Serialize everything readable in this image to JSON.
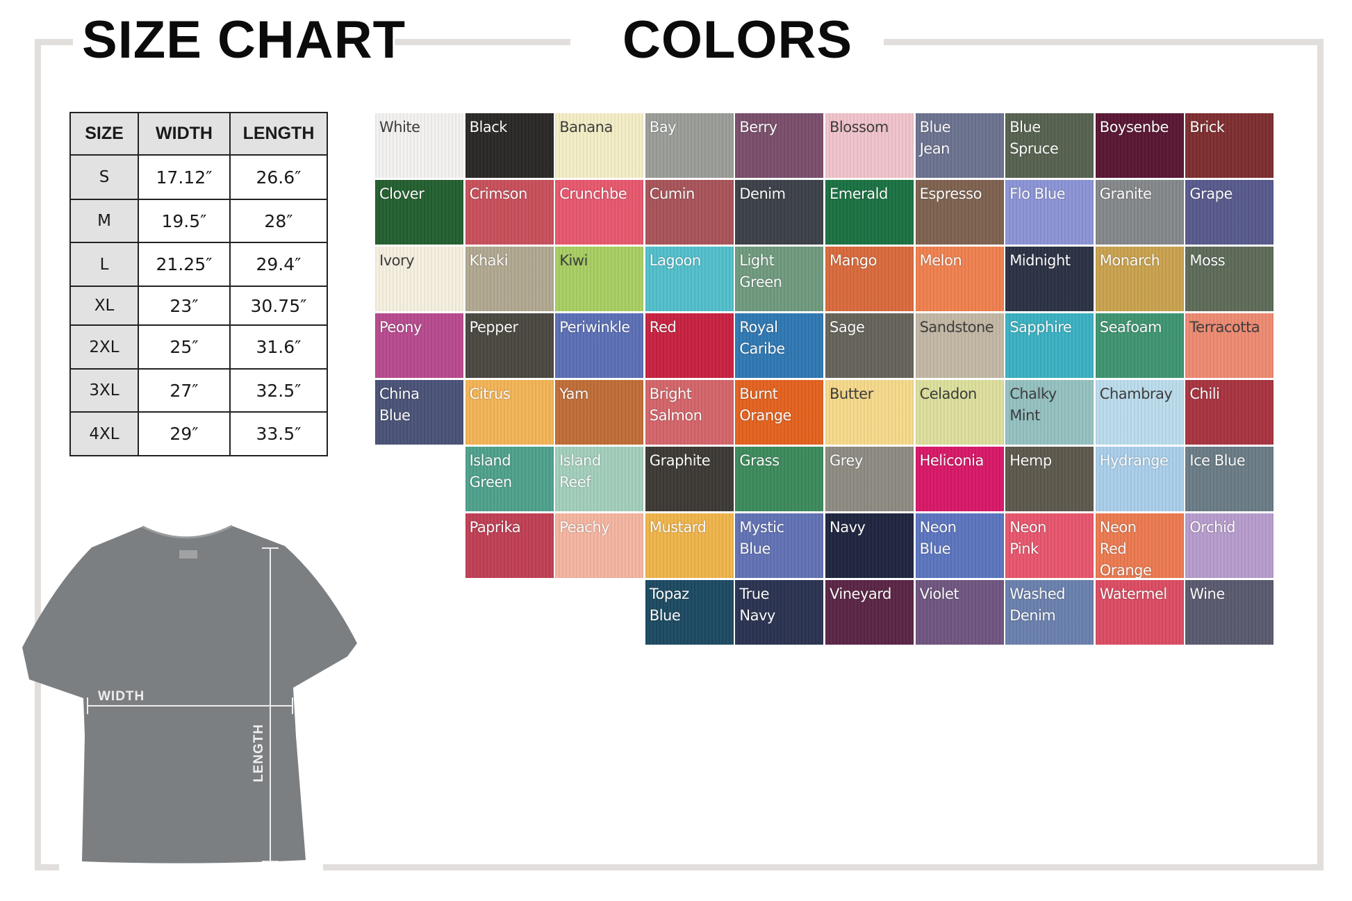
{
  "size_chart": {
    "title": "SIZE CHART",
    "headers": [
      "SIZE",
      "WIDTH",
      "LENGTH"
    ],
    "rows": [
      [
        "S",
        "17.12″",
        "26.6″"
      ],
      [
        "M",
        "19.5″",
        "28″"
      ],
      [
        "L",
        "21.25″",
        "29.4″"
      ],
      [
        "XL",
        "23″",
        "30.75″"
      ],
      [
        "2XL",
        "25″",
        "31.6″"
      ],
      [
        "3XL",
        "27″",
        "32.5″"
      ],
      [
        "4XL",
        "29″",
        "33.5″"
      ]
    ]
  },
  "diagram": {
    "width_label": "WIDTH",
    "length_label": "LENGTH",
    "shirt_color": "#7c7f82"
  },
  "colors": {
    "title": "COLORS",
    "rows": [
      [
        {
          "label": "White",
          "hex": "#f3f2f0",
          "text": "dark"
        },
        {
          "label": "Black",
          "hex": "#2a2826",
          "text": "light"
        },
        {
          "label": "Banana",
          "hex": "#f4eec6",
          "text": "dark"
        },
        {
          "label": "Bay",
          "hex": "#9a9d98",
          "text": "light"
        },
        {
          "label": "Berry",
          "hex": "#7a4e6c",
          "text": "light"
        },
        {
          "label": "Blossom",
          "hex": "#f1c3cb",
          "text": "dark"
        },
        {
          "label": "Blue\nJean",
          "hex": "#6c7390",
          "text": "light"
        },
        {
          "label": "Blue\nSpruce",
          "hex": "#56624f",
          "text": "light"
        },
        {
          "label": "Boysenbe",
          "hex": "#5a1634",
          "text": "light"
        },
        {
          "label": "Brick",
          "hex": "#7e2d2f",
          "text": "light"
        }
      ],
      [
        {
          "label": "Clover",
          "hex": "#23602f",
          "text": "light"
        },
        {
          "label": "Crimson",
          "hex": "#c8505b",
          "text": "light"
        },
        {
          "label": "Crunchbe",
          "hex": "#e7586e",
          "text": "light"
        },
        {
          "label": "Cumin",
          "hex": "#a85459",
          "text": "light"
        },
        {
          "label": "Denim",
          "hex": "#3c4048",
          "text": "light"
        },
        {
          "label": "Emerald",
          "hex": "#1a7242",
          "text": "light"
        },
        {
          "label": "Espresso",
          "hex": "#7e6250",
          "text": "light"
        },
        {
          "label": "Flo Blue",
          "hex": "#8c94d6",
          "text": "light"
        },
        {
          "label": "Granite",
          "hex": "#85888a",
          "text": "light"
        },
        {
          "label": "Grape",
          "hex": "#575a8c",
          "text": "light"
        }
      ],
      [
        {
          "label": "Ivory",
          "hex": "#f6f0e0",
          "text": "dark"
        },
        {
          "label": "Khaki",
          "hex": "#b1a890",
          "text": "light"
        },
        {
          "label": "Kiwi",
          "hex": "#a8cf63",
          "text": "dark"
        },
        {
          "label": "Lagoon",
          "hex": "#52bfcb",
          "text": "light"
        },
        {
          "label": "Light\nGreen",
          "hex": "#6f9a7e",
          "text": "light"
        },
        {
          "label": "Mango",
          "hex": "#d96a3c",
          "text": "light"
        },
        {
          "label": "Melon",
          "hex": "#f0804f",
          "text": "light"
        },
        {
          "label": "Midnight",
          "hex": "#2b3244",
          "text": "light"
        },
        {
          "label": "Monarch",
          "hex": "#c9a24e",
          "text": "light"
        },
        {
          "label": "Moss",
          "hex": "#5e6b59",
          "text": "light"
        }
      ],
      [
        {
          "label": "Peony",
          "hex": "#b84a8e",
          "text": "light"
        },
        {
          "label": "Pepper",
          "hex": "#4a4840",
          "text": "light"
        },
        {
          "label": "Periwinkle",
          "hex": "#5b6fb5",
          "text": "light"
        },
        {
          "label": "Red",
          "hex": "#c72240",
          "text": "light"
        },
        {
          "label": "Royal\nCaribe",
          "hex": "#2f78b3",
          "text": "light"
        },
        {
          "label": "Sage",
          "hex": "#66635a",
          "text": "light"
        },
        {
          "label": "Sandstone",
          "hex": "#c3b8a4",
          "text": "dark"
        },
        {
          "label": "Sapphire",
          "hex": "#3ab1c2",
          "text": "light"
        },
        {
          "label": "Seafoam",
          "hex": "#3f9571",
          "text": "light"
        },
        {
          "label": "Terracotta",
          "hex": "#ee8a72",
          "text": "dark"
        }
      ],
      [
        {
          "label": "China\nBlue",
          "hex": "#4a5377",
          "text": "light"
        },
        {
          "label": "Citrus",
          "hex": "#f3b456",
          "text": "light"
        },
        {
          "label": "Yam",
          "hex": "#c06d37",
          "text": "light"
        },
        {
          "label": "Bright\nSalmon",
          "hex": "#d4656a",
          "text": "light"
        },
        {
          "label": "Burnt\nOrange",
          "hex": "#e4621f",
          "text": "light"
        },
        {
          "label": "Butter",
          "hex": "#f6d98b",
          "text": "dark"
        },
        {
          "label": "Celadon",
          "hex": "#dcdf9c",
          "text": "dark"
        },
        {
          "label": "Chalky\nMint",
          "hex": "#95c1c1",
          "text": "dark"
        },
        {
          "label": "Chambray",
          "hex": "#bcdcec",
          "text": "dark"
        },
        {
          "label": "Chili",
          "hex": "#a83440",
          "text": "light"
        }
      ],
      [
        null,
        {
          "label": "Island\nGreen",
          "hex": "#4ea18d",
          "text": "light"
        },
        {
          "label": "Island\nReef",
          "hex": "#a3cfbc",
          "text": "light"
        },
        {
          "label": "Graphite",
          "hex": "#3d3a35",
          "text": "light"
        },
        {
          "label": "Grass",
          "hex": "#3c8a5c",
          "text": "light"
        },
        {
          "label": "Grey",
          "hex": "#8e8b82",
          "text": "light"
        },
        {
          "label": "Heliconia",
          "hex": "#d81868",
          "text": "light"
        },
        {
          "label": "Hemp",
          "hex": "#5e594d",
          "text": "light"
        },
        {
          "label": "Hydrange",
          "hex": "#a9cfea",
          "text": "light"
        },
        {
          "label": "Ice Blue",
          "hex": "#6a7c86",
          "text": "light"
        }
      ],
      [
        null,
        {
          "label": "Paprika",
          "hex": "#c03f54",
          "text": "light"
        },
        {
          "label": "Peachy",
          "hex": "#f4b5a1",
          "text": "light"
        },
        {
          "label": "Mustard",
          "hex": "#efb54b",
          "text": "light"
        },
        {
          "label": "Mystic\nBlue",
          "hex": "#6272b4",
          "text": "light"
        },
        {
          "label": "Navy",
          "hex": "#1f2540",
          "text": "light"
        },
        {
          "label": "Neon\nBlue",
          "hex": "#5b75bf",
          "text": "light"
        },
        {
          "label": "Neon\nPink",
          "hex": "#e7566d",
          "text": "light"
        },
        {
          "label": "Neon\nRed\nOrange",
          "hex": "#ec7a50",
          "text": "light"
        },
        {
          "label": "Orchid",
          "hex": "#b79ccd",
          "text": "light"
        }
      ],
      [
        null,
        null,
        null,
        {
          "label": "Topaz\nBlue",
          "hex": "#1c4a62",
          "text": "light"
        },
        {
          "label": "True\nNavy",
          "hex": "#2a3352",
          "text": "light"
        },
        {
          "label": "Vineyard",
          "hex": "#5b2545",
          "text": "light"
        },
        {
          "label": "Violet",
          "hex": "#6f5580",
          "text": "light"
        },
        {
          "label": "Washed\nDenim",
          "hex": "#6a80ad",
          "text": "light"
        },
        {
          "label": "Watermel",
          "hex": "#dc4c63",
          "text": "light"
        },
        {
          "label": "Wine",
          "hex": "#5a5a70",
          "text": "light"
        }
      ]
    ]
  }
}
